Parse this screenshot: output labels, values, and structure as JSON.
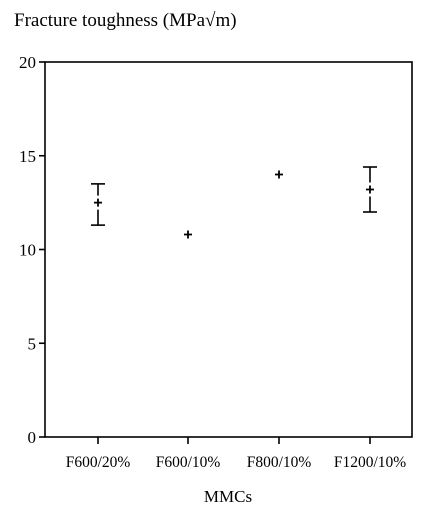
{
  "chart_data": {
    "type": "scatter",
    "ylabel": "Fracture toughness  (MPa√m)",
    "xlabel": "MMCs",
    "categories": [
      "F600/20%",
      "F600/10%",
      "F800/10%",
      "F1200/10%"
    ],
    "values": [
      12.5,
      10.8,
      14.0,
      13.2
    ],
    "error_low": [
      11.3,
      null,
      null,
      12.0
    ],
    "error_high": [
      13.5,
      null,
      null,
      14.4
    ],
    "ylim": [
      0,
      20
    ],
    "yticks": [
      "0",
      "5",
      "10",
      "15",
      "20"
    ],
    "grid": false,
    "marker": "+"
  }
}
